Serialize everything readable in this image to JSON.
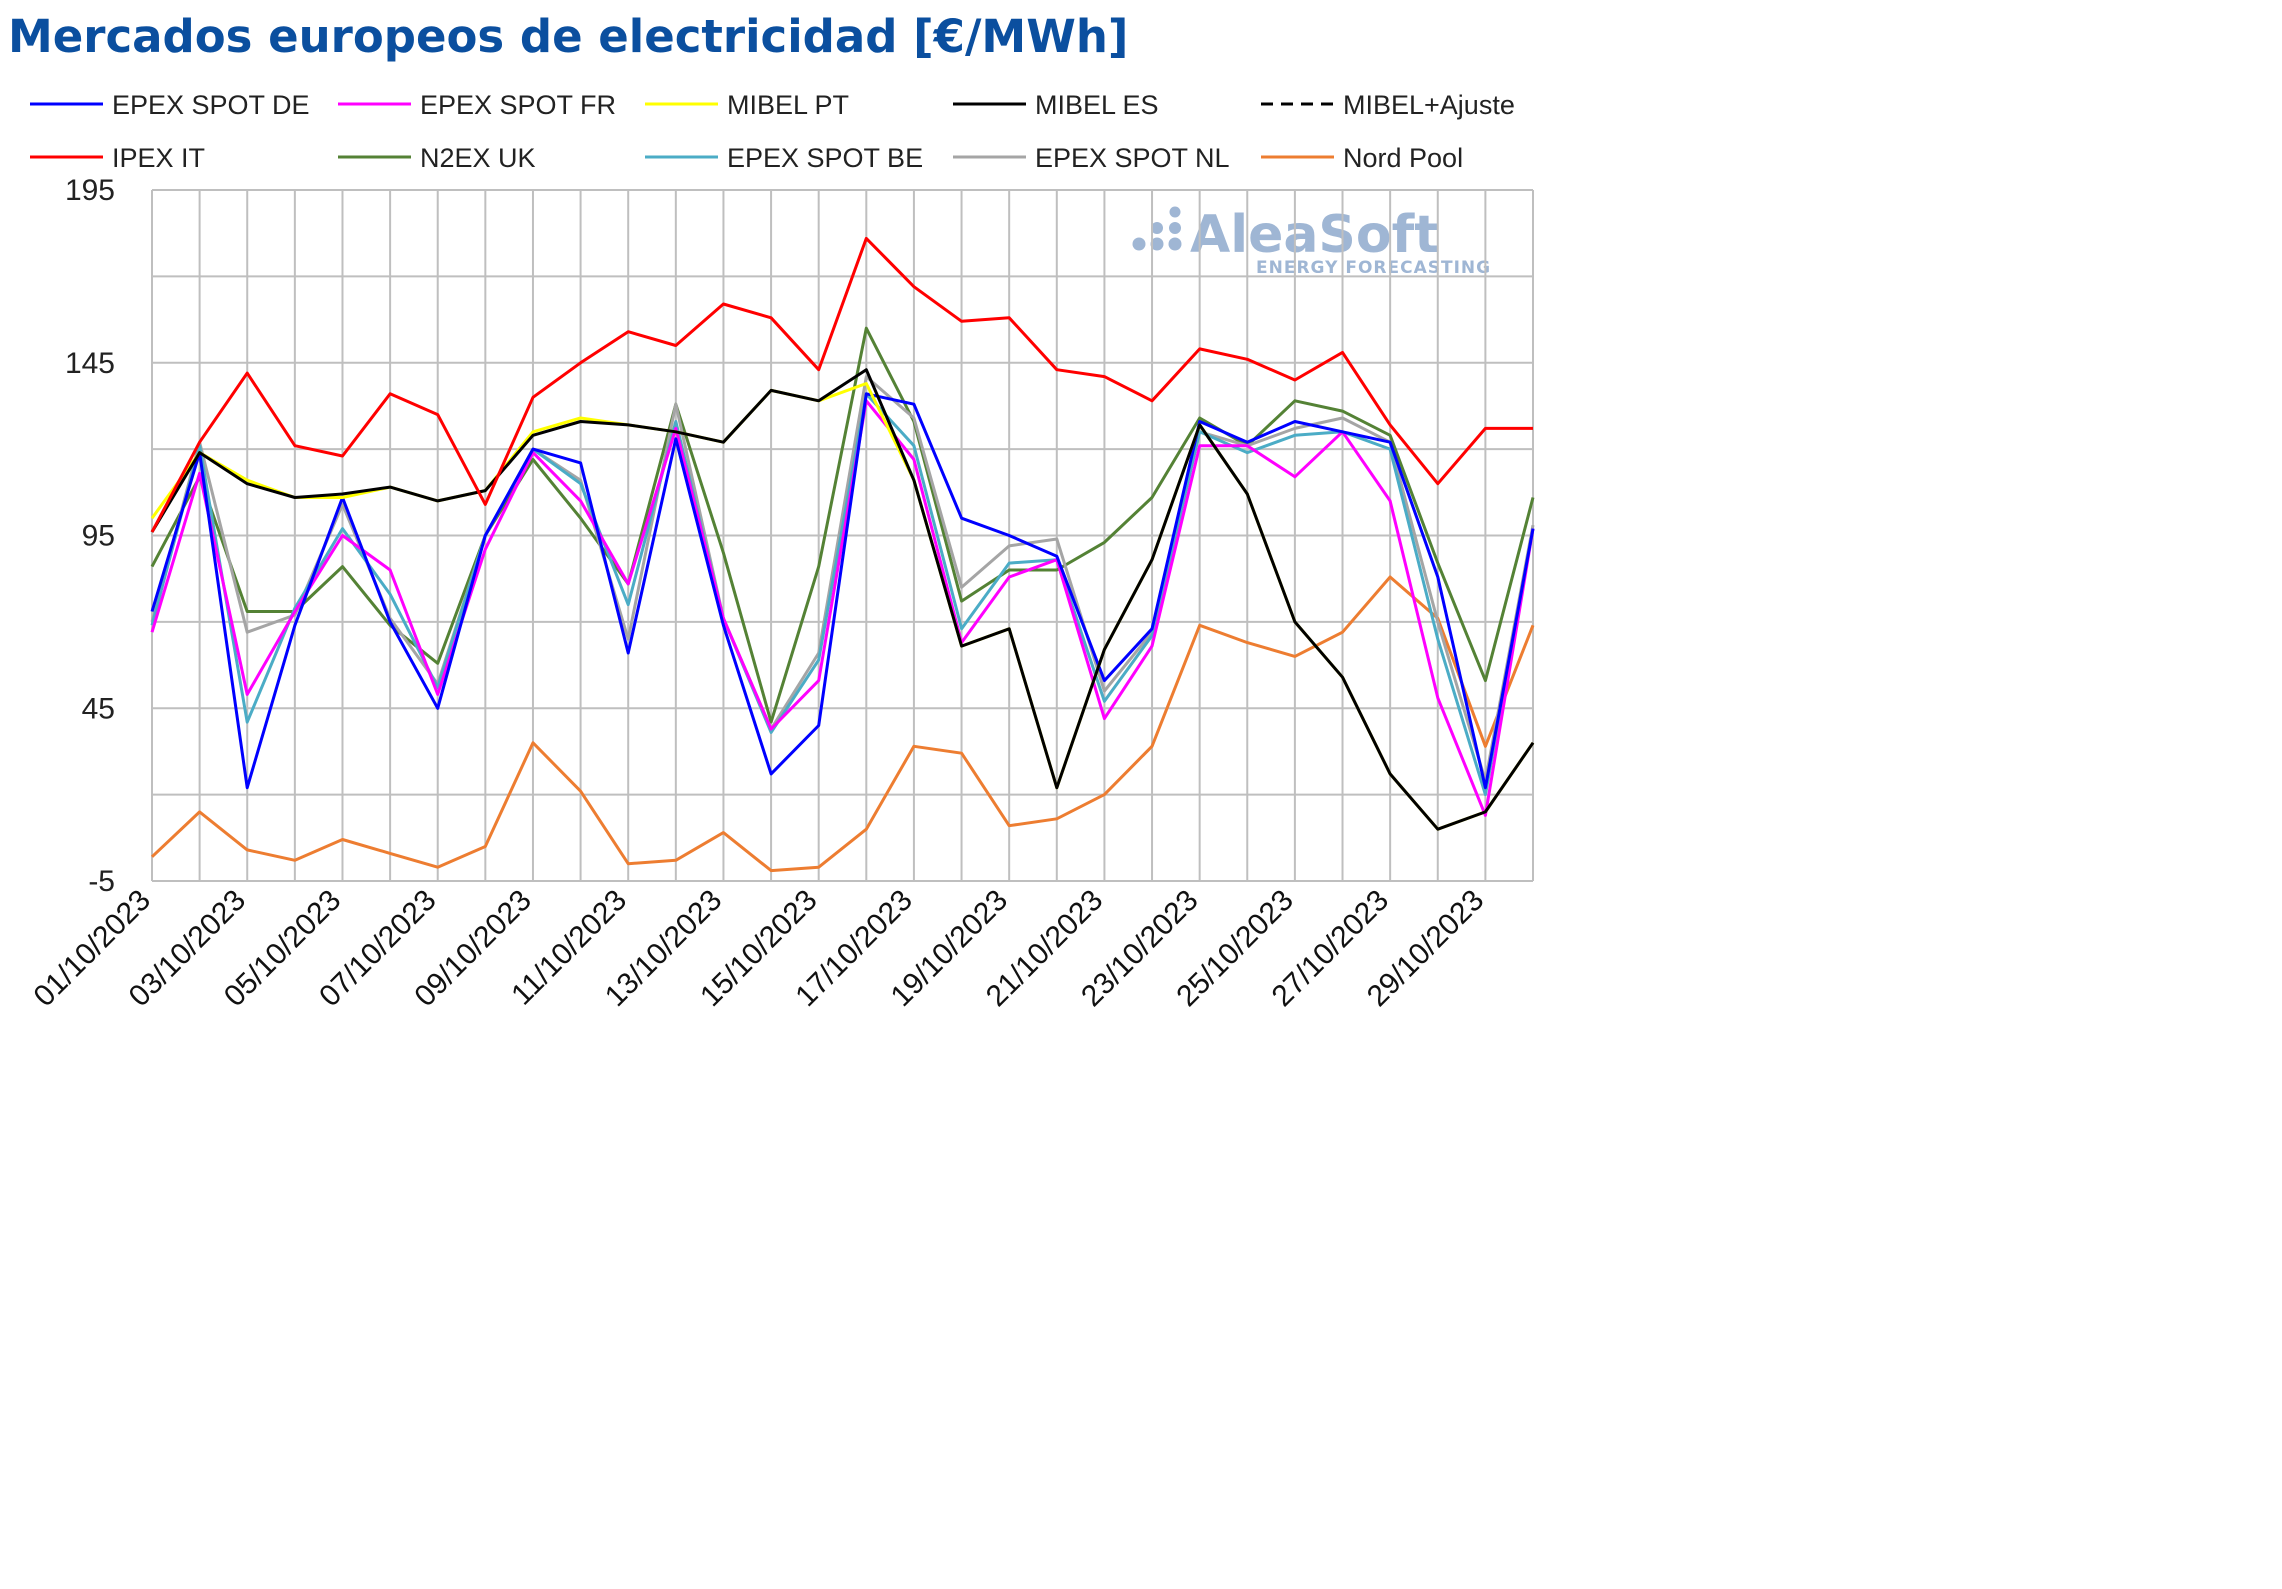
{
  "title": "Mercados europeos de electricidad [€/MWh]",
  "logo": {
    "name": "AleaSoft",
    "tagline": "ENERGY FORECASTING"
  },
  "chart_data": {
    "type": "line",
    "title": "Mercados europeos de electricidad [€/MWh]",
    "xlabel": "",
    "ylabel": "",
    "ylim": [
      -5,
      195
    ],
    "yticks": [
      -5,
      45,
      95,
      145,
      195
    ],
    "grid": "vertical and horizontal",
    "legend_position": "top",
    "x": [
      "01/10/2023",
      "02/10/2023",
      "03/10/2023",
      "04/10/2023",
      "05/10/2023",
      "06/10/2023",
      "07/10/2023",
      "08/10/2023",
      "09/10/2023",
      "10/10/2023",
      "11/10/2023",
      "12/10/2023",
      "13/10/2023",
      "14/10/2023",
      "15/10/2023",
      "16/10/2023",
      "17/10/2023",
      "18/10/2023",
      "19/10/2023",
      "20/10/2023",
      "21/10/2023",
      "22/10/2023",
      "23/10/2023",
      "24/10/2023",
      "25/10/2023",
      "26/10/2023",
      "27/10/2023",
      "28/10/2023",
      "29/10/2023",
      "30/10/2023"
    ],
    "xtick_labels": [
      "01/10/2023",
      "03/10/2023",
      "05/10/2023",
      "07/10/2023",
      "09/10/2023",
      "11/10/2023",
      "13/10/2023",
      "15/10/2023",
      "17/10/2023",
      "19/10/2023",
      "21/10/2023",
      "23/10/2023",
      "25/10/2023",
      "27/10/2023",
      "29/10/2023"
    ],
    "series": [
      {
        "name": "EPEX SPOT DE",
        "color": "#0000ff",
        "dash": "solid",
        "values": [
          73,
          119,
          22,
          69,
          106,
          70,
          45,
          95,
          120,
          116,
          61,
          123,
          69,
          26,
          40,
          136,
          133,
          100,
          95,
          89,
          53,
          68,
          128,
          122,
          128,
          125,
          122,
          83,
          22,
          97
        ]
      },
      {
        "name": "EPEX SPOT FR",
        "color": "#ff00ff",
        "dash": "solid",
        "values": [
          67,
          113,
          49,
          73,
          95,
          85,
          49,
          91,
          119,
          105,
          81,
          126,
          71,
          39,
          53,
          134,
          117,
          64,
          83,
          88,
          42,
          63,
          121,
          121,
          112,
          125,
          105,
          48,
          14,
          97
        ]
      },
      {
        "name": "MIBEL PT",
        "color": "#ffff00",
        "dash": "solid",
        "values": [
          100,
          119,
          111,
          106,
          106,
          109,
          105,
          108,
          125,
          129,
          127,
          125,
          122,
          137,
          134,
          139,
          111,
          63,
          68,
          22,
          62,
          88,
          127,
          107,
          70,
          54,
          26,
          10,
          15,
          35
        ]
      },
      {
        "name": "MIBEL ES",
        "color": "#000000",
        "dash": "solid",
        "values": [
          96,
          119,
          110,
          106,
          107,
          109,
          105,
          108,
          124,
          128,
          127,
          125,
          122,
          137,
          134,
          143,
          111,
          63,
          68,
          22,
          62,
          88,
          127,
          107,
          70,
          54,
          26,
          10,
          15,
          35
        ]
      },
      {
        "name": "MIBEL+Ajuste",
        "color": "#000000",
        "dash": "dashed",
        "values": [
          96,
          119,
          110,
          106,
          107,
          109,
          105,
          108,
          124,
          128,
          127,
          125,
          122,
          137,
          134,
          143,
          111,
          63,
          68,
          22,
          62,
          88,
          127,
          107,
          70,
          54,
          26,
          10,
          15,
          35
        ]
      },
      {
        "name": "IPEX IT",
        "color": "#ff0000",
        "dash": "solid",
        "values": [
          96,
          122,
          142,
          121,
          118,
          136,
          130,
          104,
          135,
          145,
          154,
          150,
          162,
          158,
          143,
          181,
          167,
          157,
          158,
          143,
          141,
          134,
          149,
          146,
          140,
          148,
          127,
          110,
          126,
          126
        ]
      },
      {
        "name": "N2EX UK",
        "color": "#548235",
        "dash": "solid",
        "values": [
          86,
          112,
          73,
          73,
          86,
          69,
          58,
          95,
          117,
          100,
          81,
          133,
          90,
          41,
          86,
          155,
          128,
          76,
          85,
          85,
          93,
          106,
          129,
          121,
          134,
          131,
          124,
          87,
          53,
          106
        ]
      },
      {
        "name": "EPEX SPOT BE",
        "color": "#4bacc6",
        "dash": "solid",
        "values": [
          69,
          121,
          41,
          74,
          97,
          78,
          51,
          95,
          120,
          110,
          75,
          128,
          71,
          38,
          59,
          136,
          121,
          68,
          87,
          88,
          47,
          66,
          125,
          119,
          124,
          125,
          120,
          65,
          20,
          97
        ]
      },
      {
        "name": "EPEX SPOT NL",
        "color": "#a5a5a5",
        "dash": "solid",
        "values": [
          70,
          122,
          67,
          72,
          104,
          71,
          52,
          95,
          120,
          111,
          65,
          133,
          71,
          39,
          61,
          141,
          129,
          80,
          92,
          94,
          50,
          67,
          125,
          121,
          126,
          129,
          122,
          70,
          24,
          98
        ]
      },
      {
        "name": "Nord Pool",
        "color": "#ed7d31",
        "dash": "solid",
        "values": [
          2,
          15,
          4,
          1,
          7,
          3,
          -1,
          5,
          35,
          21,
          0,
          1,
          9,
          -2,
          -1,
          10,
          34,
          32,
          11,
          13,
          20,
          34,
          69,
          64,
          60,
          67,
          83,
          71,
          34,
          69
        ]
      }
    ]
  }
}
